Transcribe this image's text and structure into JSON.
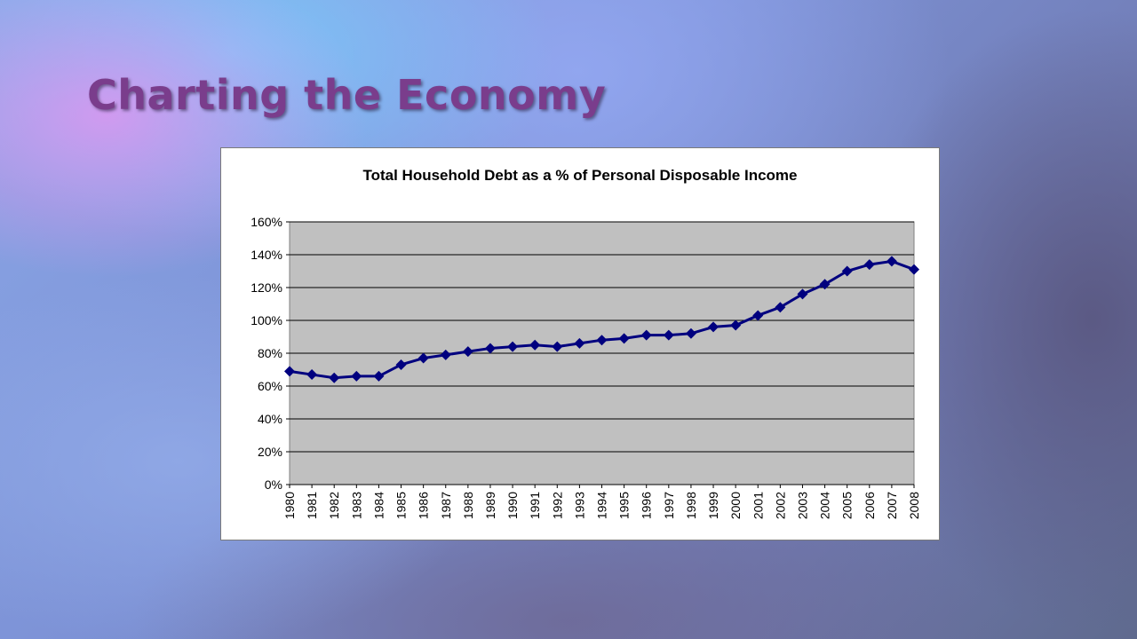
{
  "slide": {
    "title": "Charting the Economy"
  },
  "chart_data": {
    "type": "line",
    "title": "Total Household Debt as a % of Personal Disposable Income",
    "xlabel": "",
    "ylabel": "",
    "categories": [
      "1980",
      "1981",
      "1982",
      "1983",
      "1984",
      "1985",
      "1986",
      "1987",
      "1988",
      "1989",
      "1990",
      "1991",
      "1992",
      "1993",
      "1994",
      "1995",
      "1996",
      "1997",
      "1998",
      "1999",
      "2000",
      "2001",
      "2002",
      "2003",
      "2004",
      "2005",
      "2006",
      "2007",
      "2008"
    ],
    "series": [
      {
        "values": [
          69,
          67,
          65,
          66,
          66,
          73,
          77,
          79,
          81,
          83,
          84,
          85,
          84,
          86,
          88,
          89,
          91,
          91,
          92,
          96,
          97,
          103,
          108,
          116,
          122,
          130,
          134,
          136,
          131
        ]
      }
    ],
    "ylim": [
      0,
      160
    ],
    "y_ticks": [
      0,
      20,
      40,
      60,
      80,
      100,
      120,
      140,
      160
    ],
    "y_tick_format": "percent",
    "grid": true,
    "legend": "none",
    "colors": {
      "series": "#00007f",
      "plot_background": "#c0c0c0",
      "gridline": "#000000"
    },
    "marker": "diamond"
  }
}
